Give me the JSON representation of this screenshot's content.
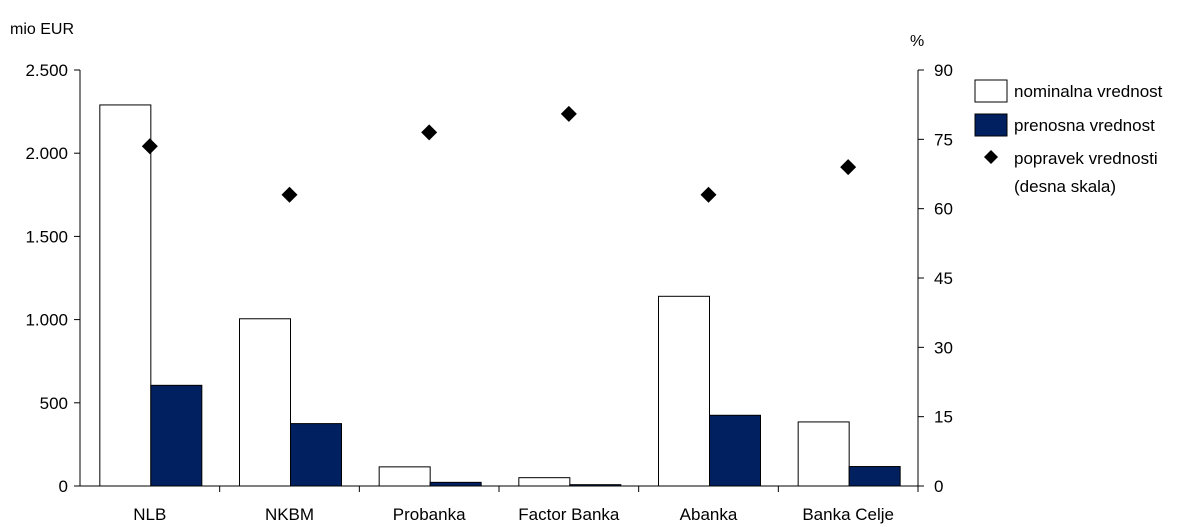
{
  "chart_data": {
    "type": "bar",
    "categories": [
      "NLB",
      "NKBM",
      "Probanka",
      "Factor Banka",
      "Abanka",
      "Banka Celje"
    ],
    "series": [
      {
        "name": "nominalna vrednost",
        "kind": "bar",
        "axis": "left",
        "color": "#ffffff",
        "values": [
          2290,
          1005,
          115,
          50,
          1140,
          385
        ]
      },
      {
        "name": "prenosna vrednost",
        "kind": "bar",
        "axis": "left",
        "color": "#002060",
        "values": [
          605,
          375,
          22,
          8,
          425,
          117
        ]
      },
      {
        "name": "popravek vrednosti",
        "name_line2": "(desna skala)",
        "kind": "marker-diamond",
        "axis": "right",
        "color": "#000000",
        "values": [
          73.5,
          63,
          76.5,
          80.5,
          63,
          69
        ]
      }
    ],
    "left_axis": {
      "unit": "mio EUR",
      "range": [
        0,
        2500
      ],
      "ticks": [
        0,
        500,
        1000,
        1500,
        2000,
        2500
      ],
      "tick_labels": [
        "0",
        "500",
        "1.000",
        "1.500",
        "2.000",
        "2.500"
      ]
    },
    "right_axis": {
      "unit": "%",
      "range": [
        0,
        90
      ],
      "ticks": [
        0,
        15,
        30,
        45,
        60,
        75,
        90
      ],
      "tick_labels": [
        "0",
        "15",
        "30",
        "45",
        "60",
        "75",
        "90"
      ]
    },
    "grid": false,
    "legend_position": "top-right"
  }
}
